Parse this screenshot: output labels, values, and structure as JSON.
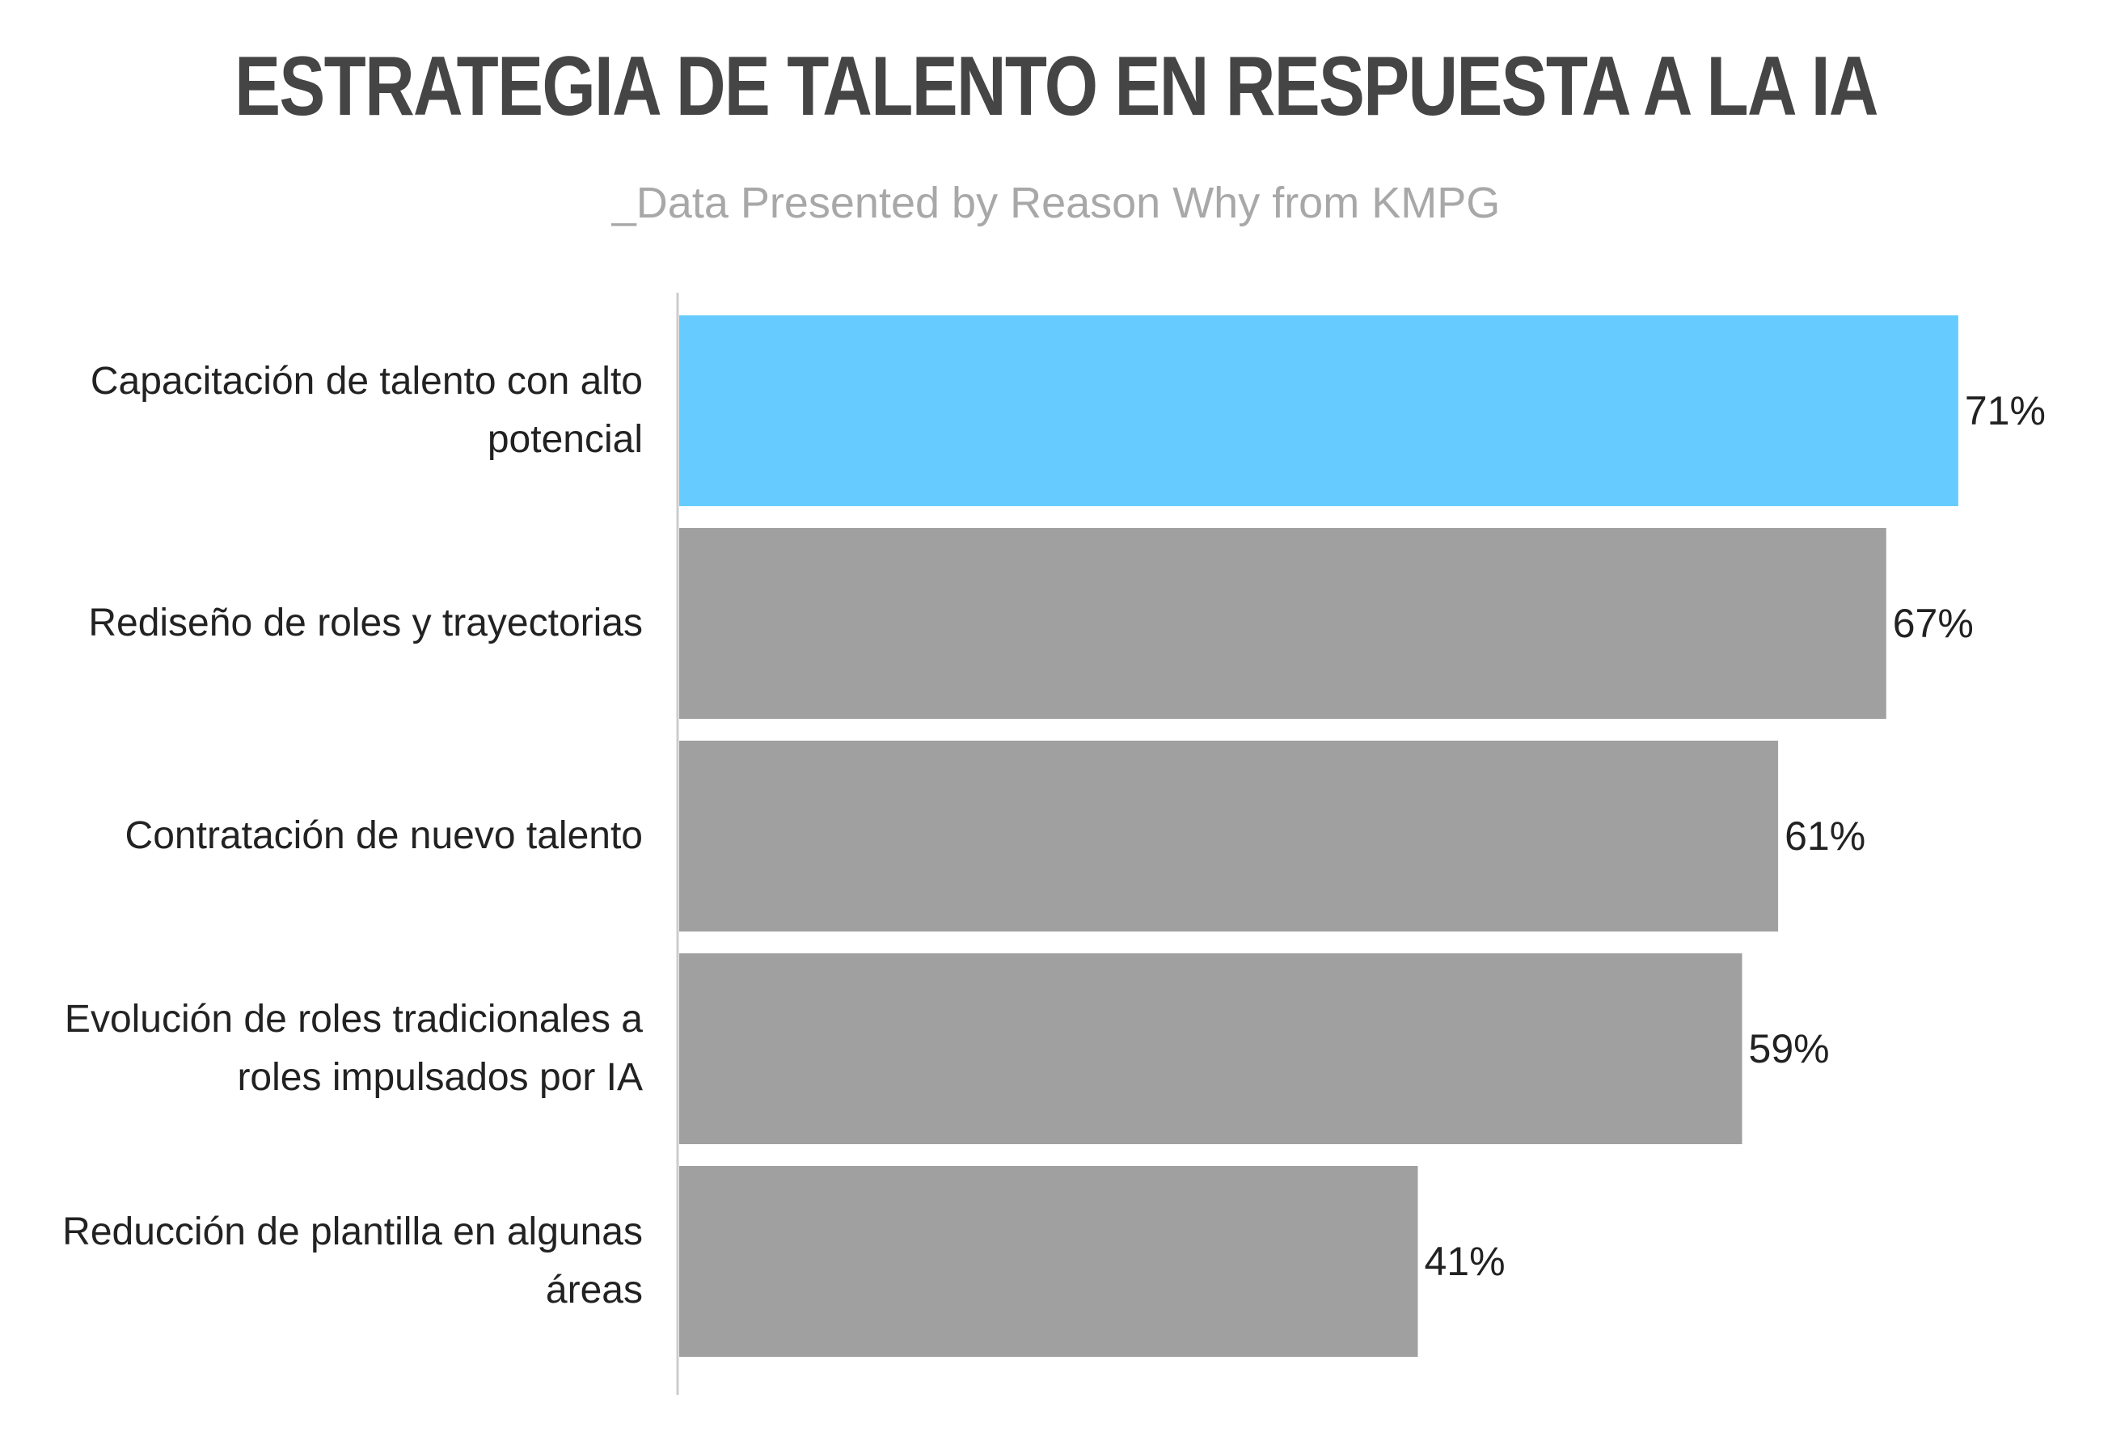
{
  "chart_data": {
    "type": "hbar",
    "title": "ESTRATEGIA DE TALENTO EN RESPUESTA A LA IA",
    "subtitle": "_Data Presented by Reason Why from KMPG",
    "categories": [
      "Capacitación de talento con alto potencial",
      "Rediseño de roles y trayectorias",
      "Contratación de nuevo talento",
      "Evolución de roles tradicionales a roles impulsados por IA",
      "Reducción de plantilla en algunas áreas"
    ],
    "values": [
      71,
      67,
      61,
      59,
      41
    ],
    "value_labels": [
      "71%",
      "67%",
      "61%",
      "59%",
      "41%"
    ],
    "colors": [
      "#66ccff",
      "#a0a0a0",
      "#a0a0a0",
      "#a0a0a0",
      "#a0a0a0"
    ],
    "xlim": [
      0,
      75
    ]
  }
}
